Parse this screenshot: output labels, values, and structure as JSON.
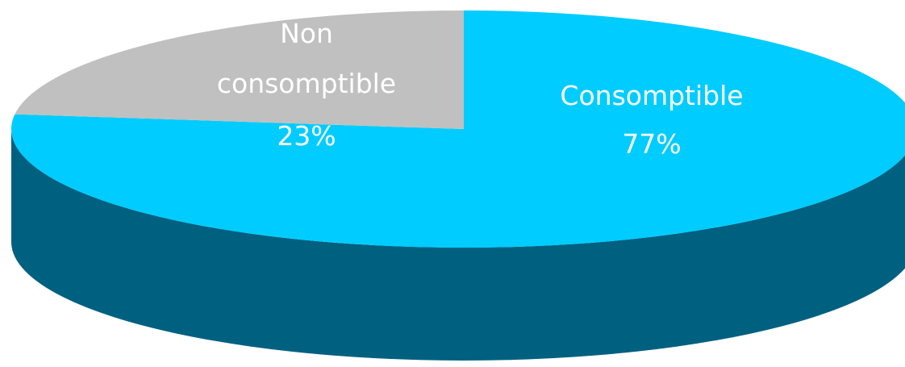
{
  "chart_data": {
    "type": "pie",
    "style": "3d",
    "title": "",
    "slices": [
      {
        "label": "Consomptible",
        "value": 77,
        "percent_label": "77%",
        "color": "#00CCFF",
        "side_color": "#006080"
      },
      {
        "label": "Non consomptible",
        "value": 23,
        "percent_label": "23%",
        "color": "#C0C0C0",
        "side_color": "#808080"
      }
    ],
    "legend": "none",
    "data_labels": true
  }
}
